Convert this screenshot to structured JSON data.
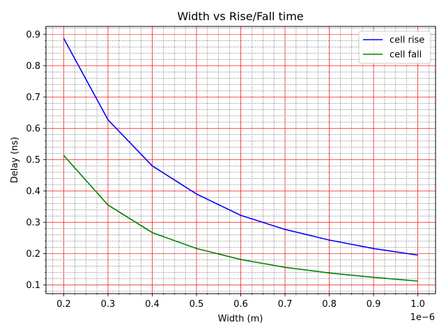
{
  "chart_data": {
    "type": "line",
    "title": "Width vs Rise/Fall time",
    "xlabel": "Width (m)",
    "ylabel": "Delay (ns)",
    "x_offset_label": "1e−6",
    "x": [
      0.2,
      0.3,
      0.4,
      0.5,
      0.6,
      0.7,
      0.8,
      0.9,
      1.0
    ],
    "x_tick_labels": [
      "0.2",
      "0.3",
      "0.4",
      "0.5",
      "0.6",
      "0.7",
      "0.8",
      "0.9",
      "1.0"
    ],
    "y_ticks": [
      0.1,
      0.2,
      0.3,
      0.4,
      0.5,
      0.6,
      0.7,
      0.8,
      0.9
    ],
    "y_tick_labels": [
      "0.1",
      "0.2",
      "0.3",
      "0.4",
      "0.5",
      "0.6",
      "0.7",
      "0.8",
      "0.9"
    ],
    "xlim": [
      0.16,
      1.04
    ],
    "ylim": [
      0.072,
      0.925
    ],
    "grid": true,
    "legend_position": "top-right",
    "series": [
      {
        "name": "cell rise",
        "color": "#0000ff",
        "values": [
          0.887,
          0.627,
          0.48,
          0.39,
          0.322,
          0.277,
          0.243,
          0.216,
          0.195
        ]
      },
      {
        "name": "cell fall",
        "color": "#008000",
        "values": [
          0.513,
          0.355,
          0.267,
          0.216,
          0.181,
          0.156,
          0.138,
          0.124,
          0.112
        ]
      }
    ]
  }
}
